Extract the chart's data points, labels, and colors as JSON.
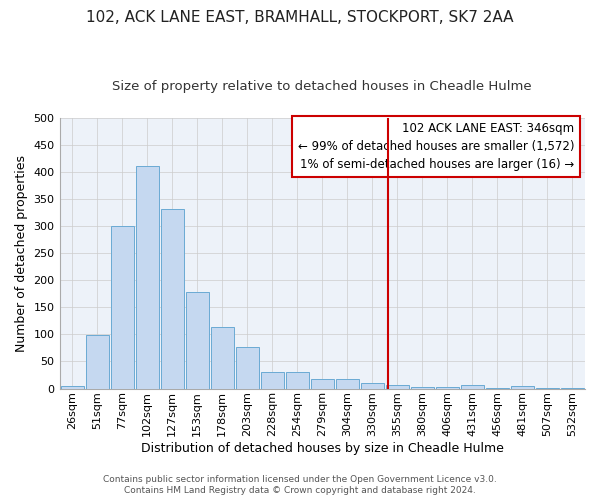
{
  "title": "102, ACK LANE EAST, BRAMHALL, STOCKPORT, SK7 2AA",
  "subtitle": "Size of property relative to detached houses in Cheadle Hulme",
  "xlabel": "Distribution of detached houses by size in Cheadle Hulme",
  "ylabel": "Number of detached properties",
  "bar_labels": [
    "26sqm",
    "51sqm",
    "77sqm",
    "102sqm",
    "127sqm",
    "153sqm",
    "178sqm",
    "203sqm",
    "228sqm",
    "254sqm",
    "279sqm",
    "304sqm",
    "330sqm",
    "355sqm",
    "380sqm",
    "406sqm",
    "431sqm",
    "456sqm",
    "481sqm",
    "507sqm",
    "532sqm"
  ],
  "bar_heights": [
    5,
    99,
    301,
    411,
    331,
    179,
    113,
    77,
    30,
    30,
    18,
    18,
    10,
    7,
    3,
    3,
    7,
    1,
    5,
    1,
    1
  ],
  "bar_color": "#c5d8f0",
  "bar_edge_color": "#6aaad4",
  "background_color": "#edf2f9",
  "grid_color": "#cccccc",
  "vline_color": "#cc0000",
  "annotation_line1": "102 ACK LANE EAST: 346sqm",
  "annotation_line2": "← 99% of detached houses are smaller (1,572)",
  "annotation_line3": "1% of semi-detached houses are larger (16) →",
  "annotation_box_color": "#cc0000",
  "ylim": [
    0,
    500
  ],
  "yticks": [
    0,
    50,
    100,
    150,
    200,
    250,
    300,
    350,
    400,
    450,
    500
  ],
  "footer_line1": "Contains HM Land Registry data © Crown copyright and database right 2024.",
  "footer_line2": "Contains public sector information licensed under the Open Government Licence v3.0.",
  "title_fontsize": 11,
  "subtitle_fontsize": 9.5,
  "annotation_fontsize": 8.5,
  "xlabel_fontsize": 9,
  "ylabel_fontsize": 9,
  "tick_fontsize": 8,
  "footer_fontsize": 6.5
}
